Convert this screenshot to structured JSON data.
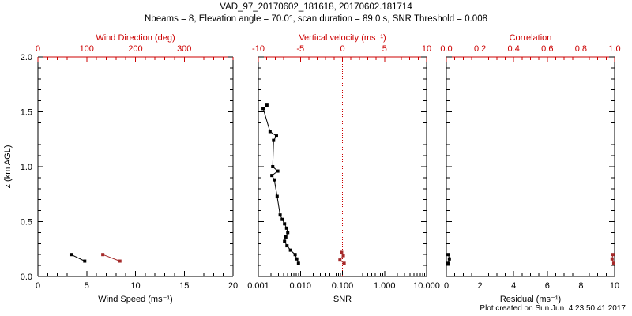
{
  "header": {
    "title": "VAD_97_20170602_181618, 20170602.181714",
    "subtitle": "Nbeams = 8, Elevation angle = 70.0°, scan duration = 89.0 s, SNR Threshold = 0.008"
  },
  "footer": {
    "created": "Plot created on Sun Jun  4 23:50:41 2017"
  },
  "colors": {
    "axis_red": "#cc0000",
    "data_red": "#a52a2a",
    "black": "#000000",
    "background": "#ffffff"
  },
  "chart_data": {
    "type": "line",
    "title": "VAD_97_20170602_181618, 20170602.181714",
    "y_axis": {
      "label": "z (km AGL)",
      "min": 0.0,
      "max": 2.0,
      "ticks": [
        0.0,
        0.5,
        1.0,
        1.5,
        2.0
      ],
      "tick_labels": [
        "0.0",
        "0.5",
        "1.0",
        "1.5",
        "2.0"
      ],
      "minor_step": 0.1
    },
    "panels": [
      {
        "name": "wind-panel",
        "bottom_axis": {
          "label": "Wind Speed (ms⁻¹)",
          "min": 0,
          "max": 20,
          "scale": "linear",
          "ticks": [
            0,
            5,
            10,
            15,
            20
          ],
          "tick_labels": [
            "0",
            "5",
            "10",
            "15",
            "20"
          ],
          "minor_step": 1,
          "color": "black"
        },
        "top_axis": {
          "label": "Wind Direction (deg)",
          "min": 0,
          "max": 400,
          "scale": "linear",
          "ticks": [
            0,
            100,
            200,
            300
          ],
          "tick_labels": [
            "0",
            "100",
            "200",
            "300"
          ],
          "minor_step": 20,
          "color": "red"
        },
        "series": [
          {
            "name": "wind-speed",
            "axis": "bottom",
            "color": "black",
            "points": [
              [
                3.4,
                0.2
              ],
              [
                4.8,
                0.14
              ]
            ]
          },
          {
            "name": "wind-direction",
            "axis": "top",
            "color": "data_red",
            "points": [
              [
                133,
                0.2
              ],
              [
                168,
                0.14
              ]
            ]
          }
        ]
      },
      {
        "name": "snr-panel",
        "bottom_axis": {
          "label": "SNR",
          "min": 0.001,
          "max": 10,
          "scale": "log",
          "ticks": [
            0.001,
            0.01,
            0.1,
            1,
            10
          ],
          "tick_labels": [
            "0.001",
            "0.010",
            "0.100",
            "1.000",
            "10.000"
          ],
          "color": "black"
        },
        "top_axis": {
          "label": "Vertical velocity (ms⁻¹)",
          "min": -10,
          "max": 10,
          "scale": "linear",
          "ticks": [
            -10,
            -5,
            0,
            5,
            10
          ],
          "tick_labels": [
            "-10",
            "-5",
            "0",
            "5",
            "10"
          ],
          "minor_step": 1,
          "color": "red"
        },
        "ref_line": {
          "axis": "top",
          "value": 0,
          "color": "red",
          "style": "dotted"
        },
        "series": [
          {
            "name": "snr-profile",
            "axis": "bottom",
            "color": "black",
            "points": [
              [
                0.009,
                0.12
              ],
              [
                0.0082,
                0.16
              ],
              [
                0.0075,
                0.2
              ],
              [
                0.0058,
                0.24
              ],
              [
                0.0048,
                0.28
              ],
              [
                0.0042,
                0.32
              ],
              [
                0.0045,
                0.36
              ],
              [
                0.005,
                0.4
              ],
              [
                0.0047,
                0.44
              ],
              [
                0.0042,
                0.48
              ],
              [
                0.0037,
                0.52
              ],
              [
                0.0033,
                0.56
              ],
              [
                0.0028,
                0.73
              ],
              [
                0.0024,
                0.88
              ],
              [
                0.0021,
                0.92
              ],
              [
                0.0029,
                0.96
              ],
              [
                0.0022,
                1.0
              ],
              [
                0.0023,
                1.24
              ],
              [
                0.0027,
                1.28
              ],
              [
                0.0019,
                1.32
              ],
              [
                0.0013,
                1.53
              ],
              [
                0.0016,
                1.56
              ]
            ]
          },
          {
            "name": "vertical-velocity",
            "axis": "top",
            "color": "data_red",
            "points": [
              [
                0.2,
                0.12
              ],
              [
                -0.3,
                0.15
              ],
              [
                0.1,
                0.19
              ],
              [
                -0.1,
                0.22
              ]
            ]
          }
        ]
      },
      {
        "name": "residual-panel",
        "bottom_axis": {
          "label": "Residual (ms⁻¹)",
          "min": 0,
          "max": 10,
          "scale": "linear",
          "ticks": [
            0,
            2,
            4,
            6,
            8,
            10
          ],
          "tick_labels": [
            "0",
            "2",
            "4",
            "6",
            "8",
            "10"
          ],
          "minor_step": 0.5,
          "color": "black"
        },
        "top_axis": {
          "label": "Correlation",
          "min": 0.0,
          "max": 1.0,
          "scale": "linear",
          "ticks": [
            0.0,
            0.2,
            0.4,
            0.6,
            0.8,
            1.0
          ],
          "tick_labels": [
            "0.0",
            "0.2",
            "0.4",
            "0.6",
            "0.8",
            "1.0"
          ],
          "minor_step": 0.05,
          "color": "red"
        },
        "series": [
          {
            "name": "residual",
            "axis": "bottom",
            "color": "black",
            "points": [
              [
                0.1,
                0.12
              ],
              [
                0.18,
                0.16
              ],
              [
                0.12,
                0.2
              ]
            ]
          },
          {
            "name": "correlation",
            "axis": "top",
            "color": "data_red",
            "points": [
              [
                0.995,
                0.12
              ],
              [
                0.985,
                0.16
              ],
              [
                0.99,
                0.2
              ]
            ]
          }
        ]
      }
    ]
  }
}
